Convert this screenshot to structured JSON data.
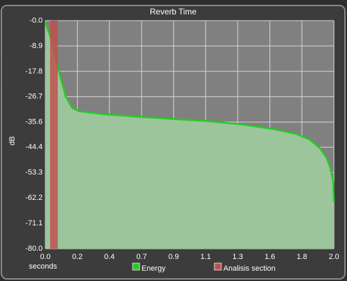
{
  "chart_data": {
    "type": "area",
    "title": "Reverb Time",
    "x_label": "seconds",
    "y_label": "dB",
    "xlim": [
      0,
      2
    ],
    "ylim": [
      -80,
      0
    ],
    "xticks": [
      {
        "value": 0,
        "label": "0.0"
      },
      {
        "value": 0.222,
        "label": "0.2"
      },
      {
        "value": 0.444,
        "label": "0.4"
      },
      {
        "value": 0.667,
        "label": "0.7"
      },
      {
        "value": 0.889,
        "label": "0.9"
      },
      {
        "value": 1.111,
        "label": "1.1"
      },
      {
        "value": 1.333,
        "label": "1.3"
      },
      {
        "value": 1.556,
        "label": "1.6"
      },
      {
        "value": 1.778,
        "label": "1.8"
      },
      {
        "value": 2,
        "label": "2.0"
      }
    ],
    "yticks": [
      {
        "value": 0,
        "label": "-0.0"
      },
      -8.9,
      -17.8,
      -26.7,
      -35.6,
      -44.4,
      -53.3,
      -62.2,
      -71.1,
      {
        "value": -80,
        "label": "-80.0"
      }
    ],
    "grid": true,
    "series": [
      {
        "name": "Energy",
        "color": "#22cc22",
        "fill": "#9cc59c",
        "x": [
          0,
          0.043,
          0.09,
          0.14,
          0.186,
          0.234,
          0.4,
          0.64,
          0.88,
          1.12,
          1.36,
          1.59,
          1.74,
          1.83,
          1.9,
          1.95,
          1.976,
          1.995,
          2.0
        ],
        "values": [
          -0.5,
          -7,
          -17,
          -26.5,
          -30.6,
          -31.8,
          -32.8,
          -33.7,
          -34.5,
          -35.2,
          -36.4,
          -38.1,
          -39.8,
          -41.7,
          -44.6,
          -48.2,
          -51.8,
          -56.6,
          -63.4
        ]
      },
      {
        "name": "Analisis section",
        "color": "#c05050",
        "x": [
          0.033,
          0.086
        ]
      }
    ]
  }
}
